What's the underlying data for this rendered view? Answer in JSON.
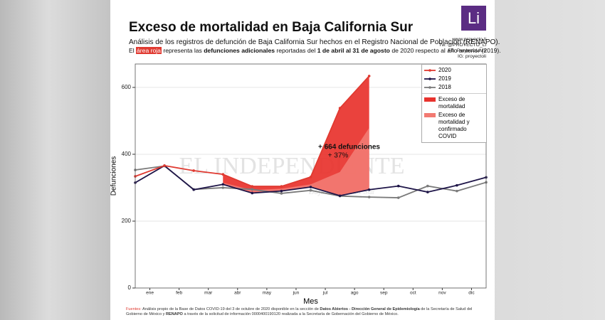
{
  "chart_data": {
    "type": "line",
    "title": "Exceso de mortalidad en Baja California Sur",
    "subtitle": "Análisis de los registros de defunción de Baja California Sur hechos en el Registro Nacional de Población (RENAPO).",
    "subtitle_2": [
      {
        "text": "El "
      },
      {
        "text": "área roja",
        "style": "highlight"
      },
      {
        "text": " representa las "
      },
      {
        "text": "defunciones adicionales",
        "style": "bold"
      },
      {
        "text": " reportadas del "
      },
      {
        "text": "1 de abril al 31 de agosto",
        "style": "bold"
      },
      {
        "text": " de 2020 respecto al año anterior (2019)."
      }
    ],
    "logo": "Li",
    "credits": [
      "www.proyecto.li",
      "Tw: @PROYECTO_Li",
      "FB: ProyectoLiMx",
      "IG: proyectoli"
    ],
    "watermark": [
      "Diario",
      "EL INDEPENDIENTE",
      "Baja California Sur"
    ],
    "x_label": "Mes",
    "y_label": "Defunciones",
    "x": [
      0,
      1,
      2,
      3,
      4,
      5,
      6,
      7,
      8,
      9,
      10,
      11,
      12
    ],
    "xlim": [
      0,
      12
    ],
    "xticks": [
      {
        "value": 0.5,
        "label": "ene"
      },
      {
        "value": 1.5,
        "label": "feb"
      },
      {
        "value": 2.5,
        "label": "mar"
      },
      {
        "value": 3.5,
        "label": "abr"
      },
      {
        "value": 4.5,
        "label": "may"
      },
      {
        "value": 5.5,
        "label": "jun"
      },
      {
        "value": 6.5,
        "label": "jul"
      },
      {
        "value": 7.5,
        "label": "ago"
      },
      {
        "value": 8.5,
        "label": "sep"
      },
      {
        "value": 9.5,
        "label": "oct"
      },
      {
        "value": 10.5,
        "label": "nov"
      },
      {
        "value": 11.5,
        "label": "dic"
      }
    ],
    "ylim": [
      0,
      670
    ],
    "yticks": [
      0,
      200,
      400,
      600
    ],
    "grid": true,
    "legend": "upper right",
    "series": [
      {
        "name": "2020",
        "color": "#e03a31",
        "values": [
          334,
          366,
          351,
          340,
          304,
          304,
          332,
          538,
          634,
          null,
          null,
          null,
          null
        ]
      },
      {
        "name": "2019",
        "color": "#1e1548",
        "values": [
          315,
          366,
          294,
          310,
          284,
          290,
          302,
          276,
          294,
          305,
          287,
          307,
          331
        ]
      },
      {
        "name": "2018",
        "color": "#7a7a7a",
        "values": [
          353,
          365,
          295,
          300,
          295,
          283,
          292,
          275,
          272,
          270,
          305,
          290,
          316
        ]
      }
    ],
    "areas": [
      {
        "name": "Exceso de mortalidad",
        "color": "#e8322d",
        "values": [
          null,
          null,
          null,
          340,
          304,
          304,
          332,
          538,
          634,
          null,
          null,
          null,
          null
        ]
      },
      {
        "name": "Exceso de mortalidad y confirmado COVID",
        "color": "#f27a72",
        "values": [
          null,
          null,
          null,
          315,
          293,
          297,
          310,
          347,
          479,
          null,
          null,
          null,
          null
        ]
      }
    ],
    "annotations": [
      "+ 664 defunciones",
      "+ 37%"
    ],
    "sources": [
      {
        "text": "Fuentes:",
        "style": "red"
      },
      {
        "text": " Análisis propio de la Base de Datos COVID-19 del 3 de octubre de 2020 disponible en la sección de "
      },
      {
        "text": "Datos Abiertos - Dirección General de Epidemiología",
        "style": "bold"
      },
      {
        "text": " de la Secretaría de Salud del Gobierno de México y "
      },
      {
        "text": "RENAPO",
        "style": "bold"
      },
      {
        "text": " a través de la solicitud de información 0000400190120 realizada a la Secretaría de Gobernación del Gobierno de México."
      }
    ]
  }
}
